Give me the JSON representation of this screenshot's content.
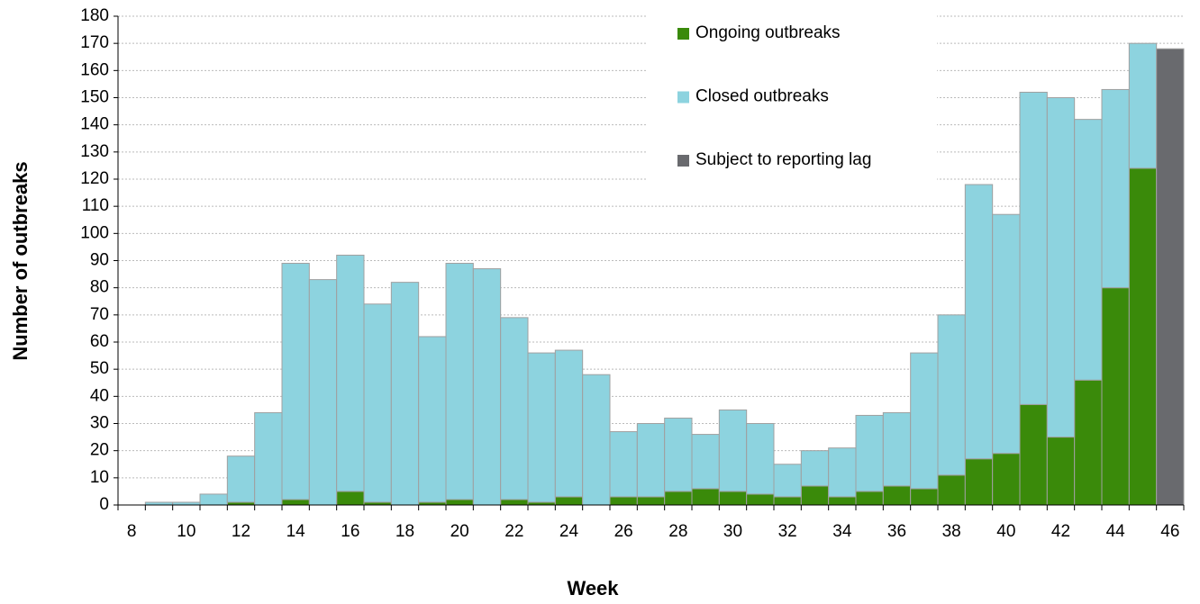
{
  "chart_data": {
    "type": "bar",
    "stacked": true,
    "x_label": "Week",
    "y_label": "Number of outbreaks",
    "categories": [
      "8",
      null,
      "10",
      null,
      "12",
      null,
      "14",
      null,
      "16",
      null,
      "18",
      null,
      "20",
      null,
      "22",
      null,
      "24",
      null,
      "26",
      null,
      "28",
      null,
      "30",
      null,
      "32",
      null,
      "34",
      null,
      "36",
      null,
      "38",
      null,
      "40",
      null,
      "42",
      null,
      "44",
      null,
      "46"
    ],
    "series": [
      {
        "name": "Ongoing outbreaks",
        "color": "#3a8a0a",
        "values": [
          null,
          null,
          null,
          null,
          1,
          null,
          2,
          null,
          5,
          1,
          null,
          1,
          2,
          null,
          2,
          1,
          3,
          null,
          3,
          3,
          5,
          6,
          5,
          4,
          3,
          7,
          3,
          5,
          7,
          6,
          11,
          17,
          19,
          37,
          25,
          46,
          80,
          124,
          null
        ]
      },
      {
        "name": "Closed outbreaks",
        "color": "#8dd3df",
        "values": [
          null,
          1,
          1,
          4,
          17,
          34,
          87,
          83,
          87,
          73,
          82,
          61,
          87,
          87,
          67,
          55,
          54,
          48,
          24,
          27,
          27,
          20,
          30,
          26,
          12,
          13,
          18,
          28,
          27,
          50,
          59,
          101,
          88,
          115,
          125,
          96,
          73,
          46,
          null
        ]
      },
      {
        "name": "Subject to reporting lag",
        "color": "#696a6e",
        "values": [
          null,
          null,
          null,
          null,
          null,
          null,
          null,
          null,
          null,
          null,
          null,
          null,
          null,
          null,
          null,
          null,
          null,
          null,
          null,
          null,
          null,
          null,
          null,
          null,
          null,
          null,
          null,
          null,
          null,
          null,
          null,
          null,
          null,
          null,
          null,
          null,
          null,
          null,
          168
        ]
      }
    ],
    "ylim": [
      0,
      180
    ],
    "yticks": [
      0,
      10,
      20,
      30,
      40,
      50,
      60,
      70,
      80,
      90,
      100,
      110,
      120,
      130,
      140,
      150,
      160,
      170,
      180
    ],
    "grid": true,
    "legend": "top"
  }
}
